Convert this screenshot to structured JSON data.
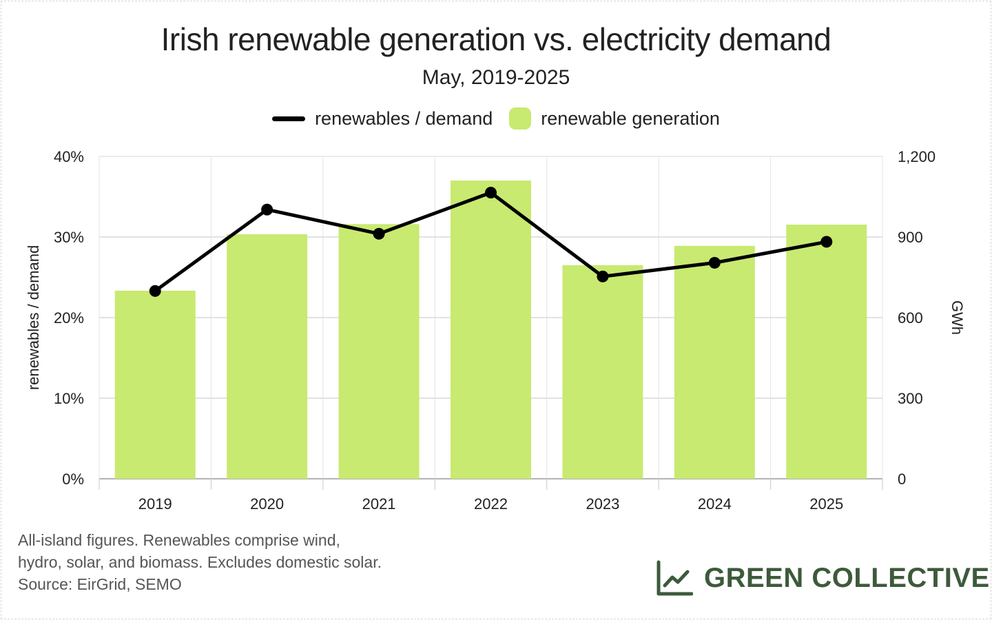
{
  "chart_data": {
    "type": "bar",
    "title": "Irish renewable generation vs. electricity demand",
    "subtitle": "May, 2019-2025",
    "categories": [
      "2019",
      "2020",
      "2021",
      "2022",
      "2023",
      "2024",
      "2025"
    ],
    "series": [
      {
        "name": "renewable generation",
        "type": "bar",
        "axis": "right",
        "color": "#c8ea70",
        "values": [
          700,
          910,
          948,
          1110,
          795,
          867,
          946
        ]
      },
      {
        "name": "renewables / demand",
        "type": "line",
        "axis": "left",
        "color": "#000000",
        "values": [
          23.3,
          33.4,
          30.4,
          35.5,
          25.1,
          26.8,
          29.4
        ]
      }
    ],
    "left_axis": {
      "label": "renewables / demand",
      "ylim": [
        0,
        40
      ],
      "ticks": [
        0,
        10,
        20,
        30,
        40
      ],
      "tick_labels": [
        "0%",
        "10%",
        "20%",
        "30%",
        "40%"
      ]
    },
    "right_axis": {
      "label": "GWh",
      "ylim": [
        0,
        1200
      ],
      "ticks": [
        0,
        300,
        600,
        900,
        1200
      ],
      "tick_labels": [
        "0",
        "300",
        "600",
        "900",
        "1,200"
      ]
    },
    "grid": true,
    "legend_position": "top-center"
  },
  "footnote": {
    "lines": [
      "All-island figures. Renewables comprise wind,",
      "hydro, solar, and biomass. Excludes domestic solar.",
      "Source: EirGrid, SEMO"
    ]
  },
  "brand": {
    "name": "GREEN COLLECTIVE",
    "color": "#3d5a3b",
    "icon": "line-chart-icon"
  }
}
